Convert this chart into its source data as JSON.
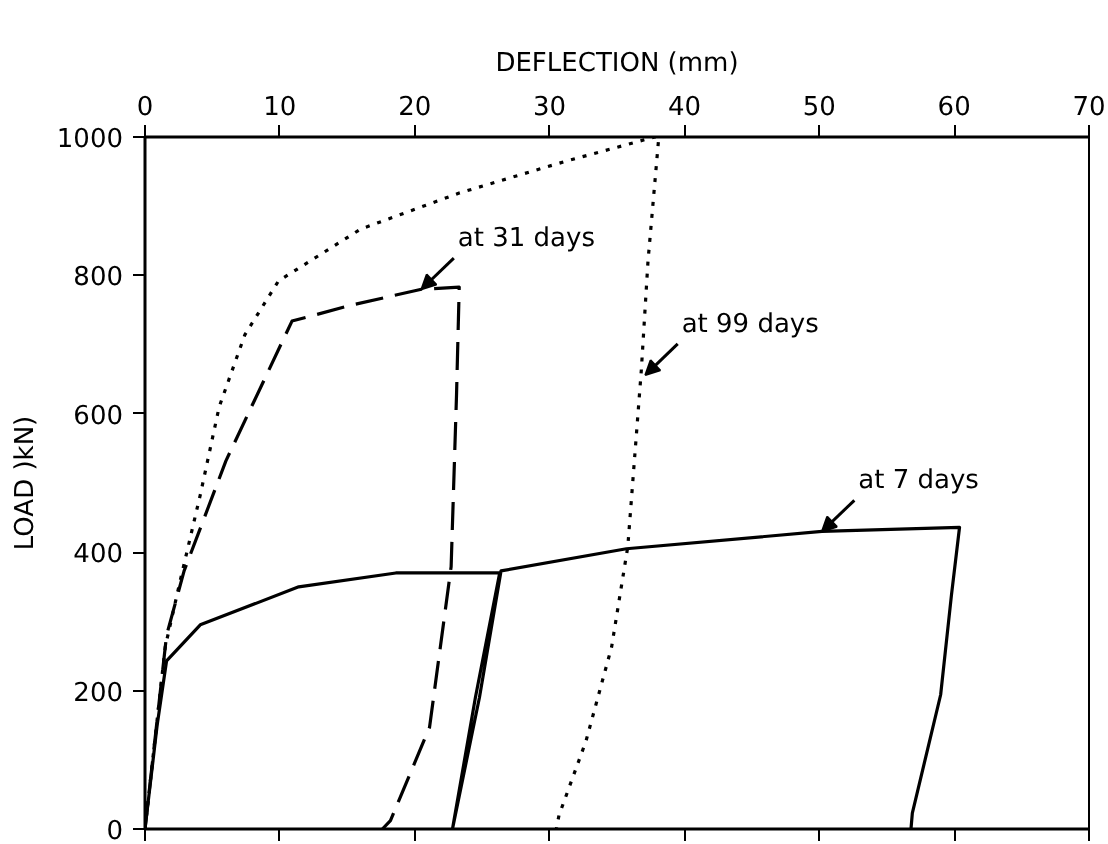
{
  "chart_data": {
    "type": "line",
    "xlabel": "DEFLECTION (mm)",
    "ylabel": "LOAD )kN)",
    "xlim": [
      0,
      70
    ],
    "xticks": [
      0,
      10,
      20,
      30,
      40,
      50,
      60,
      70
    ],
    "ylim": [
      0,
      1000
    ],
    "yticks": [
      0,
      200,
      400,
      600,
      800,
      1000
    ],
    "grid": false,
    "series": [
      {
        "color": "#000000",
        "line_style": "solid",
        "x": [
          0,
          0.9,
          1.6,
          4.1,
          11.4,
          18.6,
          26.3,
          24.5,
          22.8,
          24.8,
          26.4,
          35.7,
          50.2,
          60.4,
          59.8,
          59,
          56.9,
          56.8
        ],
        "values": [
          0,
          150,
          243,
          295,
          350,
          370,
          370,
          190,
          0,
          190,
          373,
          405,
          430,
          436,
          338,
          194,
          23,
          0
        ]
      },
      {
        "color": "#000000",
        "line_style": "dashed",
        "x": [
          0,
          1.6,
          2.9,
          6,
          10.9,
          15.3,
          20.5,
          23.3,
          23.1,
          22.7,
          21.1,
          18.2,
          17.6
        ],
        "values": [
          0,
          280,
          373,
          532,
          734,
          757,
          780,
          783,
          627,
          379,
          147,
          12,
          0
        ]
      },
      {
        "color": "#000000",
        "line_style": "dotted",
        "x": [
          0,
          1.5,
          2.6,
          4.1,
          5.5,
          7.4,
          9.9,
          16,
          23.3,
          31.2,
          37.8,
          38.1,
          37.3,
          36.8,
          35.8,
          34.6,
          32.7,
          30.7,
          30.5
        ],
        "values": [
          0,
          263,
          358,
          483,
          610,
          714,
          792,
          867,
          919,
          965,
          1000,
          1000,
          821,
          662,
          408,
          263,
          127,
          20,
          0
        ]
      }
    ],
    "annotations": [
      {
        "text": "at 31 days",
        "x": 20.5,
        "y": 780
      },
      {
        "text": "at 99 days",
        "x": 37.1,
        "y": 656
      },
      {
        "text": "at 7 days",
        "x": 50.2,
        "y": 430
      }
    ]
  }
}
